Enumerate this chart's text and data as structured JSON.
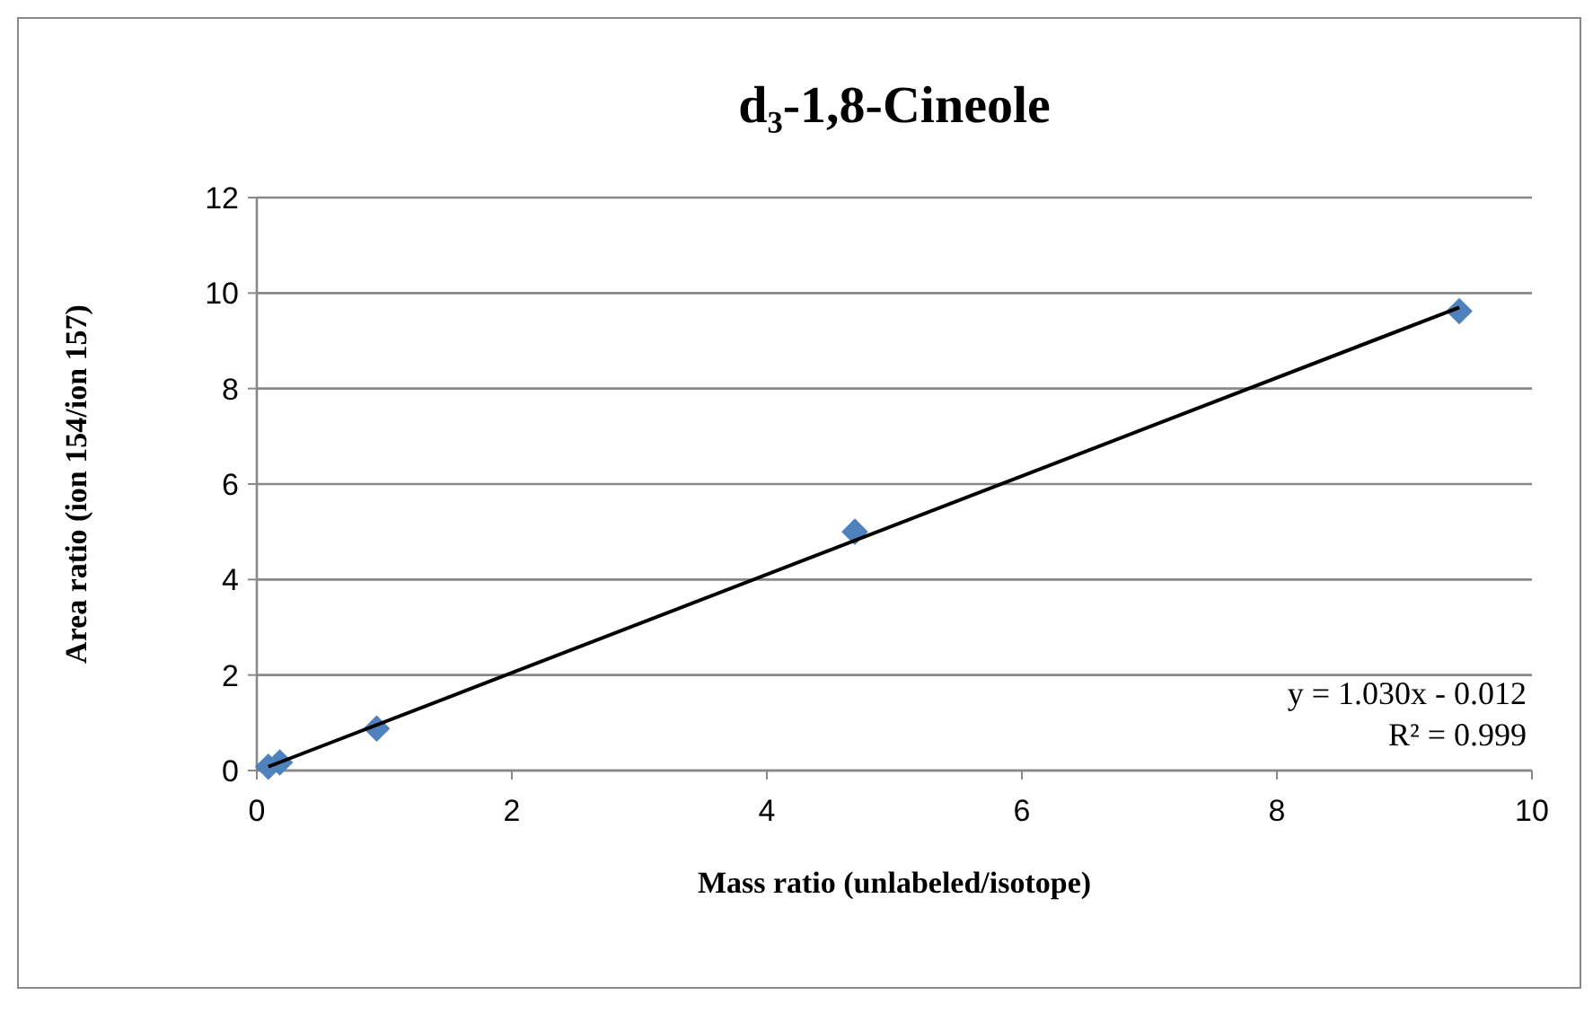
{
  "chart_data": {
    "type": "scatter",
    "title": "d₃-1,8-Cineole",
    "xlabel": "Mass ratio (unlabeled/isotope)",
    "ylabel": "Area ratio (ion 154/ion 157)",
    "xlim": [
      0,
      10
    ],
    "xticks": [
      0,
      2,
      4,
      6,
      8,
      10
    ],
    "ylim": [
      0,
      12
    ],
    "yticks": [
      0,
      2,
      4,
      6,
      8,
      10,
      12
    ],
    "grid": "y",
    "marker": "diamond",
    "series": [
      {
        "color": "#4f81bd",
        "x": [
          0.09,
          0.18,
          0.94,
          4.69,
          9.43
        ],
        "values": [
          0.08,
          0.17,
          0.88,
          5.0,
          9.62
        ]
      },
      {
        "type": "line",
        "color": "#000000",
        "x": [
          0.09,
          9.43
        ],
        "values": [
          0.08,
          9.7
        ],
        "marker": "none",
        "line_style": "solid"
      }
    ],
    "annotations": [
      "y = 1.030x - 0.012",
      "R² = 0.999"
    ]
  }
}
